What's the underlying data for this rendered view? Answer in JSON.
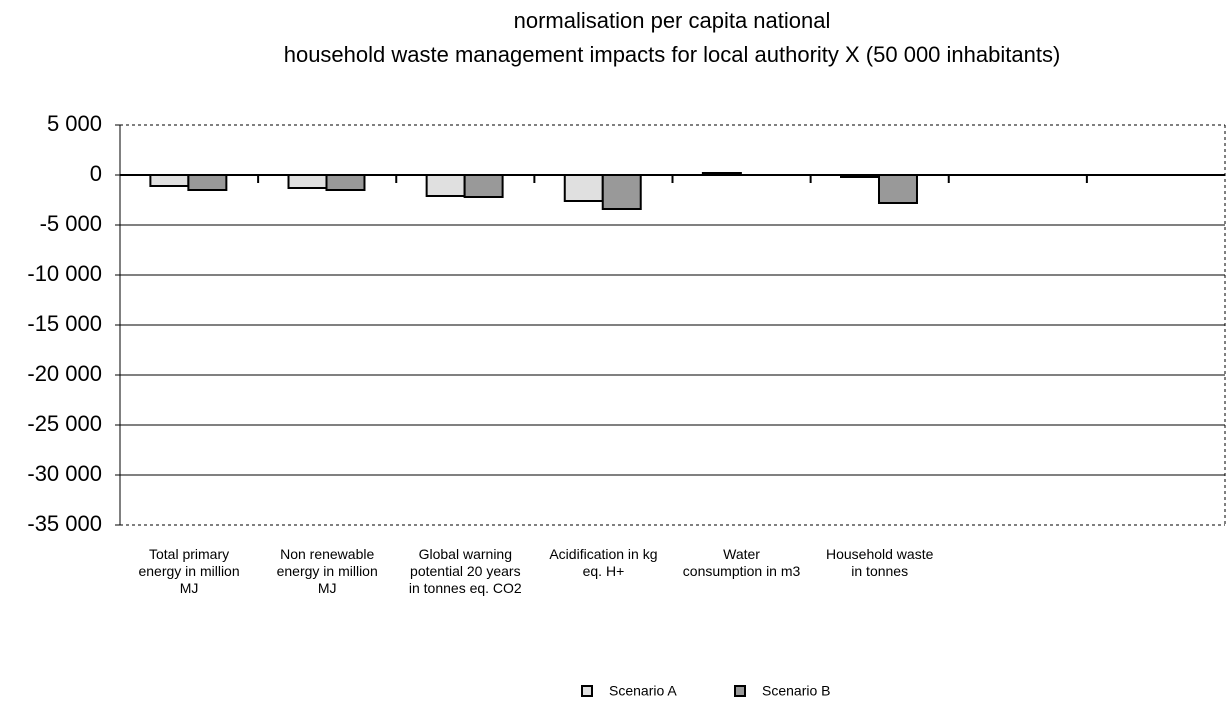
{
  "chart_data": {
    "type": "bar",
    "title": [
      "normalisation per capita national",
      "household waste management impacts for local authority X (50 000 inhabitants)"
    ],
    "categories": [
      "Total primary energy in million MJ",
      "Non renewable energy in million MJ",
      "Global warning potential 20 years in tonnes eq. CO2",
      "Acidification in kg eq. H+",
      "Water consumption in m3",
      "Household waste in tonnes",
      null,
      null
    ],
    "series": [
      {
        "name": "Scenario A",
        "color": "#e0e0e0",
        "values": [
          -1100,
          -1300,
          -2100,
          -2600,
          200,
          -200,
          null,
          null
        ]
      },
      {
        "name": "Scenario B",
        "color": "#999999",
        "values": [
          -1500,
          -1500,
          -2200,
          -3400,
          null,
          -2800,
          null,
          null
        ]
      }
    ],
    "ylim": [
      -35000,
      5000
    ],
    "yticks": [
      {
        "value": -35000,
        "label": "-35 000"
      },
      {
        "value": -30000,
        "label": "-30 000"
      },
      {
        "value": -25000,
        "label": "-25 000"
      },
      {
        "value": -20000,
        "label": "-20 000"
      },
      {
        "value": -15000,
        "label": "-15 000"
      },
      {
        "value": -10000,
        "label": "-10 000"
      },
      {
        "value": -5000,
        "label": "-5 000"
      },
      0,
      {
        "value": 5000,
        "label": "5 000"
      }
    ],
    "grid": true,
    "legend": "bottom"
  }
}
